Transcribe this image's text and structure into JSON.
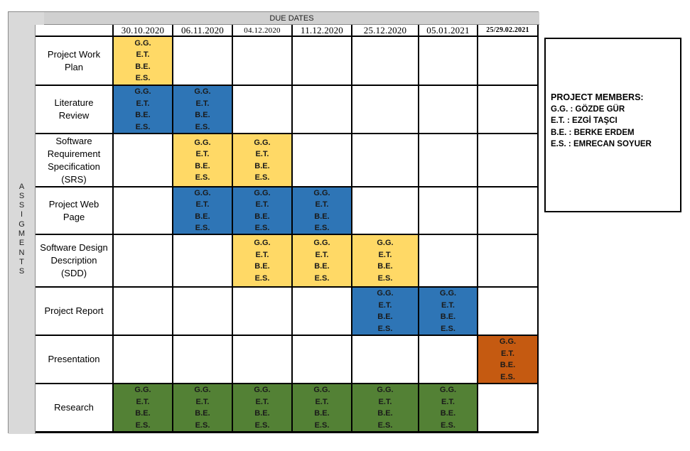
{
  "header": "DUE DATES",
  "side_label": "ASSIGMENTS",
  "dates": [
    "30.10.2020",
    "06.11.2020",
    "04.12.2020",
    "11.12.2020",
    "25.12.2020",
    "05.01.2021",
    "25/29.02.2021"
  ],
  "members_short": [
    "G.G.",
    "E.T.",
    "B.E.",
    "E.S."
  ],
  "rows": [
    {
      "label": "Project Work Plan",
      "cells": [
        "y",
        "",
        "",
        "",
        "",
        "",
        ""
      ]
    },
    {
      "label": "Literature Review",
      "cells": [
        "b",
        "b",
        "",
        "",
        "",
        "",
        ""
      ]
    },
    {
      "label": "Software Requirement Specification (SRS)",
      "cells": [
        "",
        "y",
        "y",
        "",
        "",
        "",
        ""
      ]
    },
    {
      "label": "Project Web Page",
      "cells": [
        "",
        "b",
        "b",
        "b",
        "",
        "",
        ""
      ]
    },
    {
      "label": "Software Design Description (SDD)",
      "cells": [
        "",
        "",
        "y",
        "y",
        "y",
        "",
        ""
      ]
    },
    {
      "label": "Project Report",
      "cells": [
        "",
        "",
        "",
        "",
        "b",
        "b",
        ""
      ]
    },
    {
      "label": "Presentation",
      "cells": [
        "",
        "",
        "",
        "",
        "",
        "",
        "o"
      ]
    },
    {
      "label": "Research",
      "cells": [
        "g",
        "g",
        "g",
        "g",
        "g",
        "g",
        ""
      ]
    }
  ],
  "colors": {
    "y": "#ffd966",
    "b": "#2e75b6",
    "o": "#c55a11",
    "g": "#538135"
  },
  "legend": {
    "title": "PROJECT MEMBERS:",
    "lines": [
      "G.G. : GÖZDE GÜR",
      "E.T.  : EZGİ TAŞCI",
      "B.E.  : BERKE ERDEM",
      "E.S.  : EMRECAN SOYUER"
    ]
  }
}
